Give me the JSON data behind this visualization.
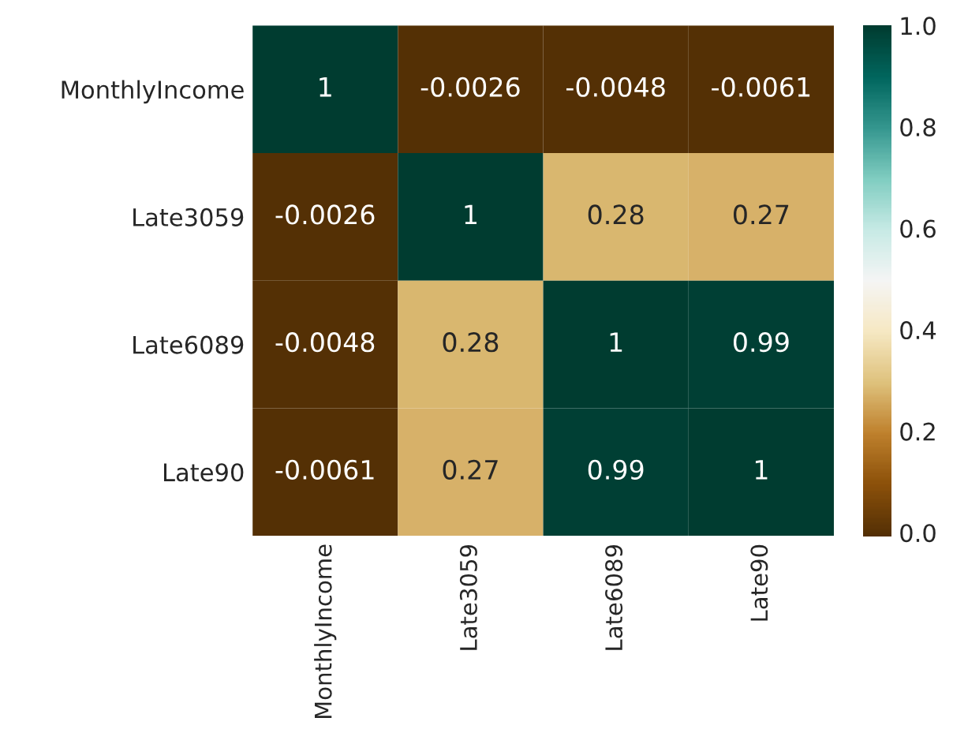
{
  "chart_data": {
    "type": "heatmap",
    "categories": [
      "MonthlyIncome",
      "Late3059",
      "Late6089",
      "Late90"
    ],
    "y_categories": [
      "MonthlyIncome",
      "Late3059",
      "Late6089",
      "Late90"
    ],
    "cells": [
      [
        1,
        -0.0026,
        -0.0048,
        -0.0061
      ],
      [
        -0.0026,
        1,
        0.28,
        0.27
      ],
      [
        -0.0048,
        0.28,
        1,
        0.99
      ],
      [
        -0.0061,
        0.27,
        0.99,
        1
      ]
    ],
    "data_labels": true,
    "clim": [
      -0.0061,
      1
    ],
    "cticks": [
      {
        "value": 0,
        "label": "0.0"
      },
      {
        "value": 0.2,
        "label": "0.2"
      },
      {
        "value": 0.4,
        "label": "0.4"
      },
      {
        "value": 0.6,
        "label": "0.6"
      },
      {
        "value": 0.8,
        "label": "0.8"
      },
      {
        "value": 1,
        "label": "1.0"
      }
    ]
  }
}
